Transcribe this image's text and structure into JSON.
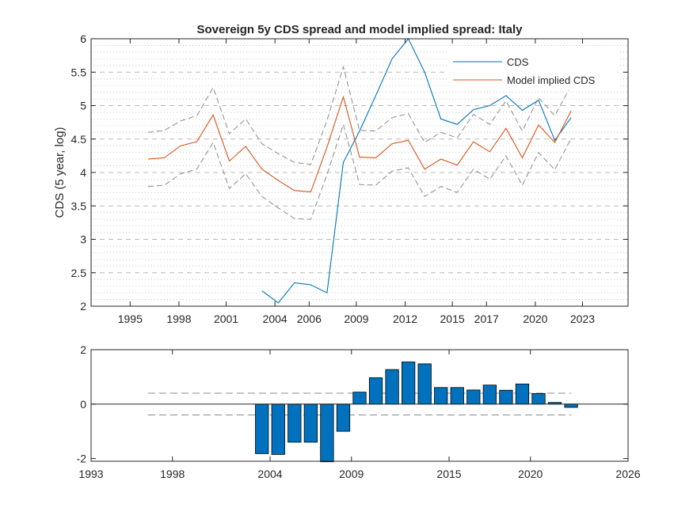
{
  "colors": {
    "cds": "#0072BD",
    "model": "#D95319",
    "band": "#8c8c8c",
    "bars": "#0072BD",
    "grid": "#b8b8b8",
    "axis": "#262626"
  },
  "chart_data": [
    {
      "type": "line",
      "title": "Sovereign 5y CDS spread and model implied spread: Italy",
      "xlabel": "",
      "ylabel": "CDS (5 year, log)",
      "xlim": [
        1993,
        2026
      ],
      "ylim": [
        2,
        6
      ],
      "x_ticks": [
        1995.4,
        1998.4,
        2001.3,
        2004.3,
        2006.4,
        2009.3,
        2012.3,
        2015.2,
        2017.3,
        2020.3,
        2023.2
      ],
      "x_tick_labels": [
        "1995",
        "1998",
        "2001",
        "2004",
        "2006",
        "2009",
        "2012",
        "2015",
        "2017",
        "2020",
        "2023"
      ],
      "y_ticks": [
        2,
        2.5,
        3,
        3.5,
        4,
        4.5,
        5,
        5.5,
        6
      ],
      "y_tick_labels": [
        "2",
        "2.5",
        "3",
        "3.5",
        "4",
        "4.5",
        "5",
        "5.5",
        "6"
      ],
      "grid": true,
      "legend_position": "top-right",
      "x": [
        1996.5,
        1997.5,
        1998.5,
        1999.5,
        2000.5,
        2001.5,
        2002.5,
        2003.5,
        2004.5,
        2005.5,
        2006.5,
        2007.5,
        2008.5,
        2009.5,
        2010.5,
        2011.5,
        2012.5,
        2013.5,
        2014.5,
        2015.5,
        2016.5,
        2017.5,
        2018.5,
        2019.5,
        2020.5,
        2021.5,
        2022.5
      ],
      "series": [
        {
          "name": "CDS",
          "role": "cds",
          "values": [
            null,
            null,
            null,
            null,
            null,
            null,
            null,
            2.23,
            2.05,
            2.35,
            2.32,
            2.2,
            4.15,
            4.62,
            5.15,
            5.7,
            6.0,
            5.5,
            4.8,
            4.72,
            4.94,
            5.0,
            5.15,
            4.93,
            5.08,
            4.48,
            4.82
          ]
        },
        {
          "name": "Model implied CDS",
          "role": "model",
          "values": [
            4.2,
            4.22,
            4.4,
            4.46,
            4.86,
            4.17,
            4.39,
            4.05,
            3.88,
            3.73,
            3.71,
            4.38,
            5.13,
            4.23,
            4.22,
            4.43,
            4.48,
            4.05,
            4.2,
            4.11,
            4.46,
            4.31,
            4.66,
            4.22,
            4.71,
            4.45,
            4.92
          ]
        },
        {
          "name": "",
          "role": "band",
          "values": [
            4.6,
            4.63,
            4.77,
            4.85,
            5.27,
            4.58,
            4.8,
            4.43,
            4.28,
            4.15,
            4.12,
            4.78,
            5.58,
            4.63,
            4.62,
            4.82,
            4.88,
            4.45,
            4.6,
            4.52,
            4.87,
            4.72,
            5.07,
            4.62,
            5.12,
            4.85,
            5.3
          ]
        },
        {
          "name": "",
          "role": "band",
          "values": [
            3.79,
            3.81,
            3.98,
            4.05,
            4.45,
            3.76,
            3.98,
            3.64,
            3.47,
            3.31,
            3.3,
            3.97,
            4.72,
            3.82,
            3.81,
            4.02,
            4.07,
            3.64,
            3.79,
            3.7,
            4.05,
            3.9,
            4.25,
            3.81,
            4.3,
            4.04,
            4.51
          ]
        }
      ]
    },
    {
      "type": "bar",
      "title": "",
      "xlabel": "",
      "ylabel": "",
      "xlim": [
        1993,
        2026
      ],
      "ylim": [
        -2.1,
        2
      ],
      "x_ticks": [
        1993,
        1998,
        2004,
        2009,
        2015,
        2020,
        2026
      ],
      "x_tick_labels": [
        "1993",
        "1998",
        "2004",
        "2009",
        "2015",
        "2020",
        "2026"
      ],
      "y_ticks": [
        -2,
        0,
        2
      ],
      "y_tick_labels": [
        "-2",
        "0",
        "2"
      ],
      "x": [
        2003.5,
        2004.5,
        2005.5,
        2006.5,
        2007.5,
        2008.5,
        2009.5,
        2010.5,
        2011.5,
        2012.5,
        2013.5,
        2014.5,
        2015.5,
        2016.5,
        2017.5,
        2018.5,
        2019.5,
        2020.5,
        2021.5,
        2022.5
      ],
      "values": [
        -1.82,
        -1.85,
        -1.4,
        -1.4,
        -2.12,
        -1.0,
        0.44,
        0.97,
        1.27,
        1.55,
        1.48,
        0.61,
        0.61,
        0.52,
        0.7,
        0.51,
        0.74,
        0.39,
        0.06,
        -0.12
      ],
      "band_x": [
        1996.5,
        2022.5
      ],
      "band_upper": 0.4,
      "band_lower": -0.4,
      "zero_line": true
    }
  ]
}
